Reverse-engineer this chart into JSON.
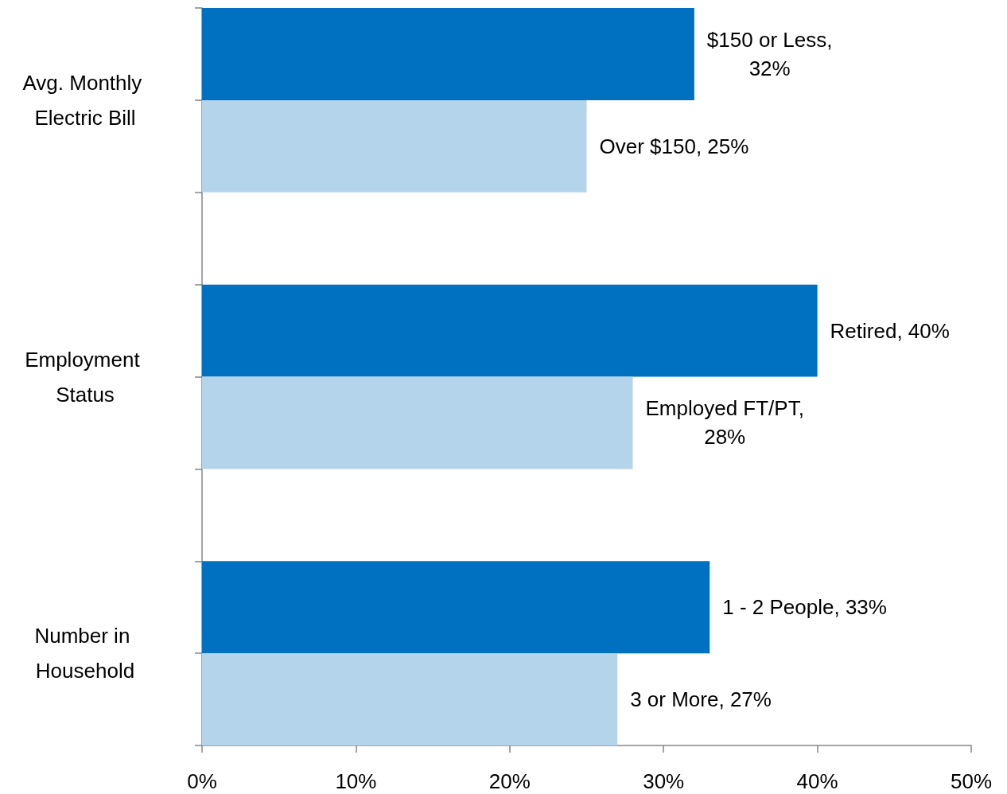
{
  "chart_data": {
    "type": "bar",
    "orientation": "horizontal",
    "categories": [
      "Avg. Monthly Electric Bill",
      "Employment Status",
      "Number in Household"
    ],
    "series": [
      {
        "color": "#0070c0",
        "values": [
          32,
          40,
          33
        ],
        "value_labels": [
          "$150 or Less,\n32%",
          "Retired, 40%",
          "1 - 2 People, 33%"
        ]
      },
      {
        "color": "#b4d4ec",
        "values": [
          25,
          28,
          27
        ],
        "value_labels": [
          "Over $150, 25%",
          "Employed FT/PT,\n28%",
          "3 or More, 27%"
        ]
      }
    ],
    "xlim": [
      0,
      50
    ],
    "xticks": [
      {
        "value": 0,
        "label": "0%"
      },
      {
        "value": 10,
        "label": "10%"
      },
      {
        "value": 20,
        "label": "20%"
      },
      {
        "value": 30,
        "label": "30%"
      },
      {
        "value": 40,
        "label": "40%"
      },
      {
        "value": 50,
        "label": "50%"
      }
    ]
  }
}
